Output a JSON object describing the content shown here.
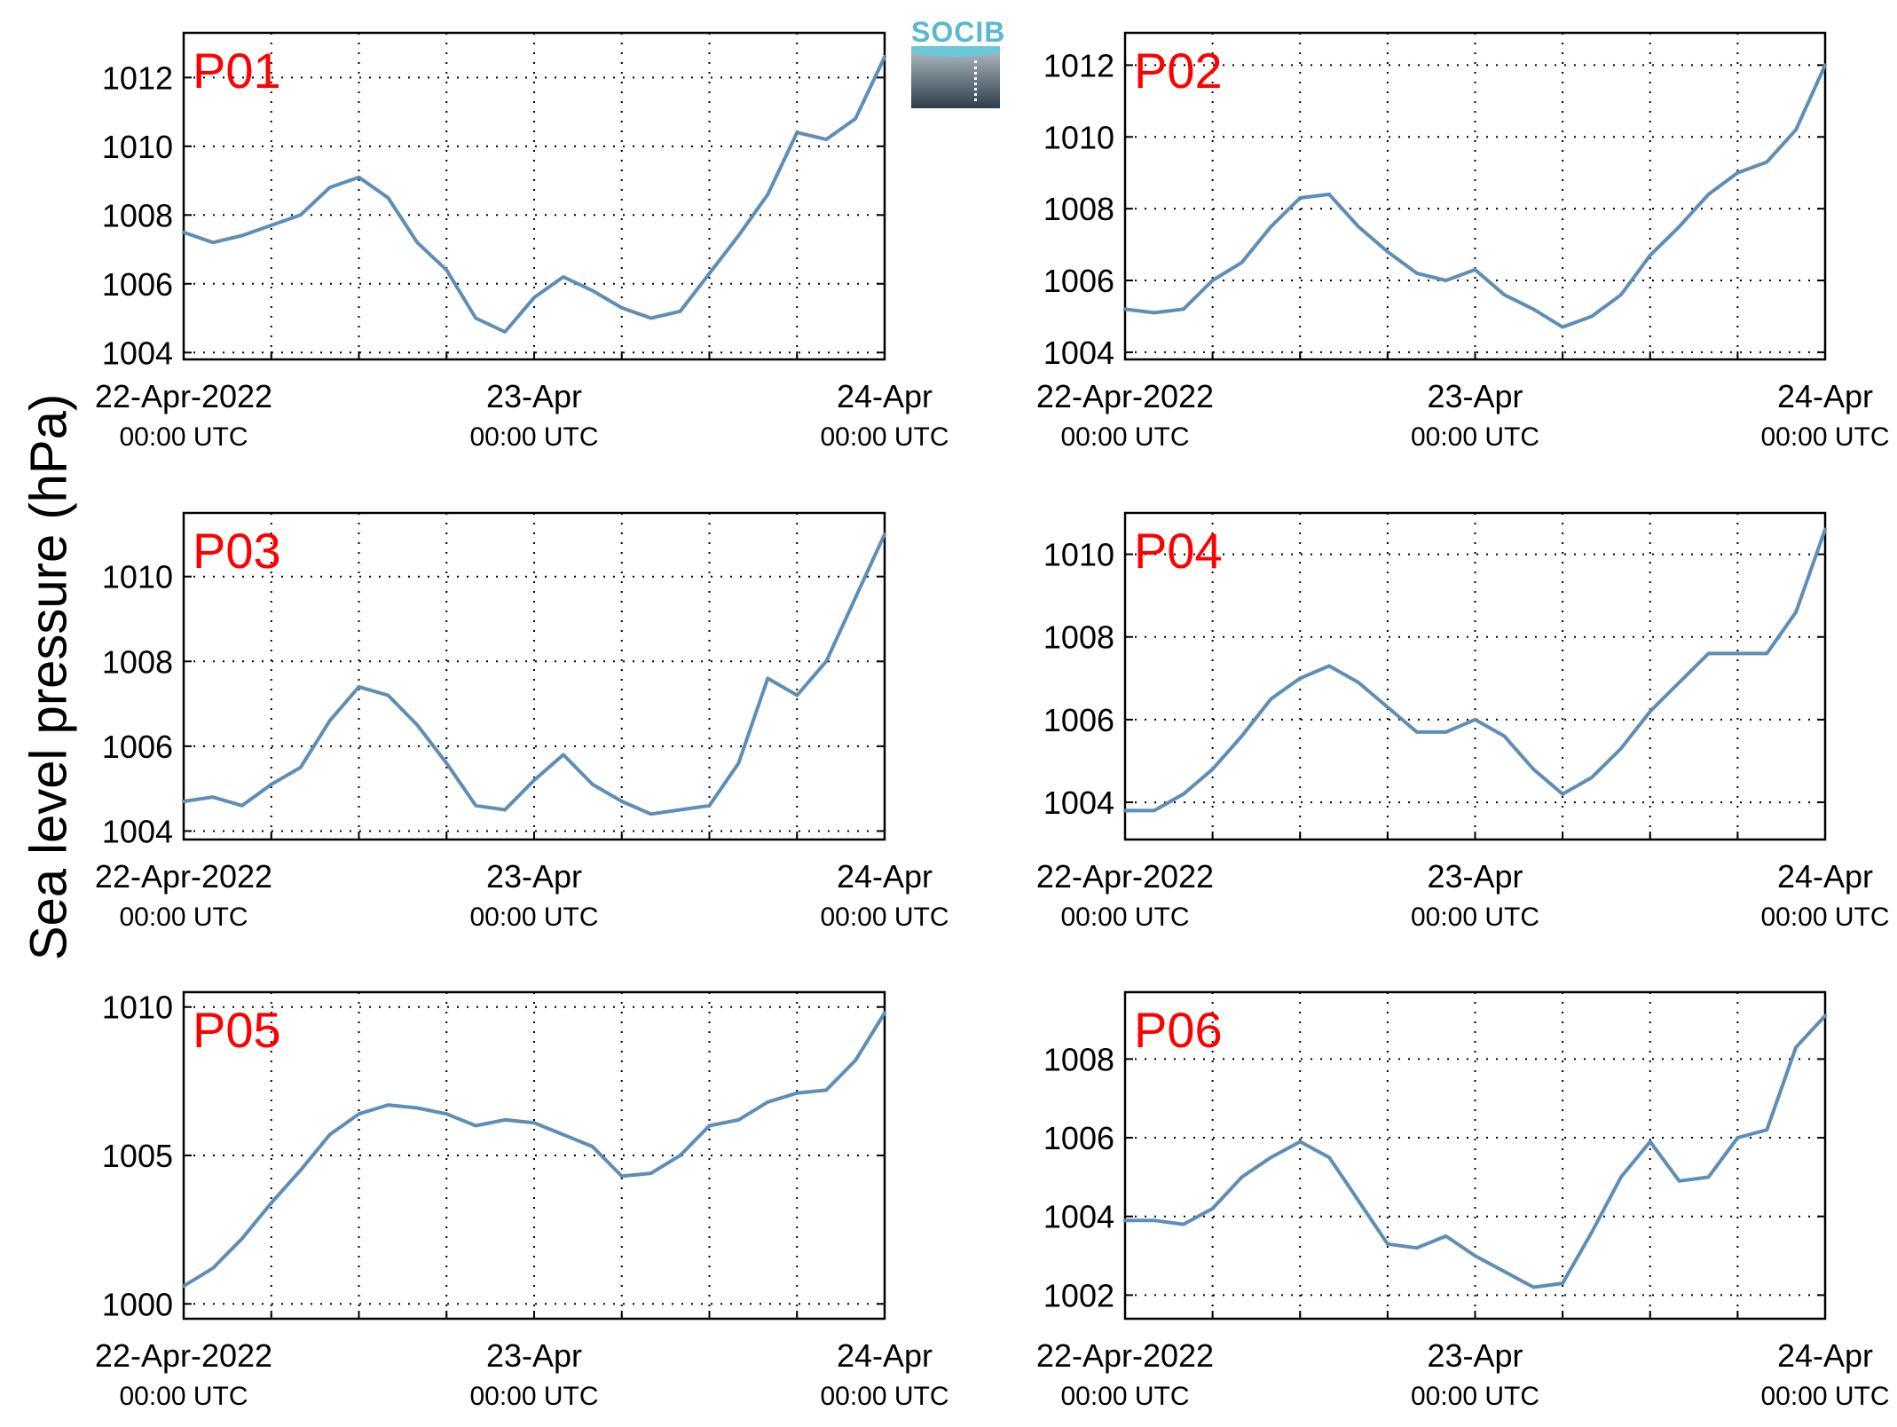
{
  "figure": {
    "ylabel": "Sea level pressure (hPa)",
    "logo_text": "SOCIB",
    "line_color": "#5e8db5",
    "panel_label_color": "#ff0000"
  },
  "chart_data": [
    {
      "type": "line",
      "panel": "P01",
      "x_ticks": [
        {
          "main": "22-Apr-2022",
          "sub": "00:00 UTC"
        },
        {
          "main": "23-Apr",
          "sub": "00:00 UTC"
        },
        {
          "main": "24-Apr",
          "sub": "00:00 UTC"
        }
      ],
      "x_hours": [
        0,
        2,
        4,
        6,
        8,
        10,
        12,
        14,
        16,
        18,
        20,
        22,
        24,
        26,
        28,
        30,
        32,
        34,
        36,
        38,
        40,
        42,
        44,
        46,
        48
      ],
      "ylim": [
        1003.8,
        1013.3
      ],
      "yticks": [
        1004,
        1006,
        1008,
        1010,
        1012
      ],
      "values": [
        1007.5,
        1007.2,
        1007.4,
        1007.7,
        1008.0,
        1008.8,
        1009.1,
        1008.5,
        1007.2,
        1006.4,
        1005.0,
        1004.6,
        1005.6,
        1006.2,
        1005.8,
        1005.3,
        1005.0,
        1005.2,
        1006.3,
        1007.4,
        1008.6,
        1010.4,
        1010.2,
        1010.8,
        1012.6
      ]
    },
    {
      "type": "line",
      "panel": "P02",
      "x_ticks": [
        {
          "main": "22-Apr-2022",
          "sub": "00:00 UTC"
        },
        {
          "main": "23-Apr",
          "sub": "00:00 UTC"
        },
        {
          "main": "24-Apr",
          "sub": "00:00 UTC"
        }
      ],
      "x_hours": [
        0,
        2,
        4,
        6,
        8,
        10,
        12,
        14,
        16,
        18,
        20,
        22,
        24,
        26,
        28,
        30,
        32,
        34,
        36,
        38,
        40,
        42,
        44,
        46,
        48
      ],
      "ylim": [
        1003.8,
        1012.9
      ],
      "yticks": [
        1004,
        1006,
        1008,
        1010,
        1012
      ],
      "values": [
        1005.2,
        1005.1,
        1005.2,
        1006.0,
        1006.5,
        1007.5,
        1008.3,
        1008.4,
        1007.5,
        1006.8,
        1006.2,
        1006.0,
        1006.3,
        1005.6,
        1005.2,
        1004.7,
        1005.0,
        1005.6,
        1006.7,
        1007.5,
        1008.4,
        1009.0,
        1009.3,
        1010.2,
        1012.0
      ]
    },
    {
      "type": "line",
      "panel": "P03",
      "x_ticks": [
        {
          "main": "22-Apr-2022",
          "sub": "00:00 UTC"
        },
        {
          "main": "23-Apr",
          "sub": "00:00 UTC"
        },
        {
          "main": "24-Apr",
          "sub": "00:00 UTC"
        }
      ],
      "x_hours": [
        0,
        2,
        4,
        6,
        8,
        10,
        12,
        14,
        16,
        18,
        20,
        22,
        24,
        26,
        28,
        30,
        32,
        34,
        36,
        38,
        40,
        42,
        44,
        46,
        48
      ],
      "ylim": [
        1003.8,
        1011.5
      ],
      "yticks": [
        1004,
        1006,
        1008,
        1010
      ],
      "values": [
        1004.7,
        1004.8,
        1004.6,
        1005.1,
        1005.5,
        1006.6,
        1007.4,
        1007.2,
        1006.5,
        1005.6,
        1004.6,
        1004.5,
        1005.2,
        1005.8,
        1005.1,
        1004.7,
        1004.4,
        1004.5,
        1004.6,
        1005.6,
        1007.6,
        1007.2,
        1008.0,
        1009.5,
        1011.0
      ]
    },
    {
      "type": "line",
      "panel": "P04",
      "x_ticks": [
        {
          "main": "22-Apr-2022",
          "sub": "00:00 UTC"
        },
        {
          "main": "23-Apr",
          "sub": "00:00 UTC"
        },
        {
          "main": "24-Apr",
          "sub": "00:00 UTC"
        }
      ],
      "x_hours": [
        0,
        2,
        4,
        6,
        8,
        10,
        12,
        14,
        16,
        18,
        20,
        22,
        24,
        26,
        28,
        30,
        32,
        34,
        36,
        38,
        40,
        42,
        44,
        46,
        48
      ],
      "ylim": [
        1003.1,
        1011.0
      ],
      "yticks": [
        1004,
        1006,
        1008,
        1010
      ],
      "values": [
        1003.8,
        1003.8,
        1004.2,
        1004.8,
        1005.6,
        1006.5,
        1007.0,
        1007.3,
        1006.9,
        1006.3,
        1005.7,
        1005.7,
        1006.0,
        1005.6,
        1004.8,
        1004.2,
        1004.6,
        1005.3,
        1006.2,
        1006.9,
        1007.6,
        1007.6,
        1007.6,
        1008.6,
        1010.6
      ]
    },
    {
      "type": "line",
      "panel": "P05",
      "x_ticks": [
        {
          "main": "22-Apr-2022",
          "sub": "00:00 UTC"
        },
        {
          "main": "23-Apr",
          "sub": "00:00 UTC"
        },
        {
          "main": "24-Apr",
          "sub": "00:00 UTC"
        }
      ],
      "x_hours": [
        0,
        2,
        4,
        6,
        8,
        10,
        12,
        14,
        16,
        18,
        20,
        22,
        24,
        26,
        28,
        30,
        32,
        34,
        36,
        38,
        40,
        42,
        44,
        46,
        48
      ],
      "ylim": [
        999.5,
        1010.5
      ],
      "yticks": [
        1000,
        1005,
        1010
      ],
      "values": [
        1000.6,
        1001.2,
        1002.2,
        1003.4,
        1004.5,
        1005.7,
        1006.4,
        1006.7,
        1006.6,
        1006.4,
        1006.0,
        1006.2,
        1006.1,
        1005.7,
        1005.3,
        1004.3,
        1004.4,
        1005.0,
        1006.0,
        1006.2,
        1006.8,
        1007.1,
        1007.2,
        1008.2,
        1009.8
      ]
    },
    {
      "type": "line",
      "panel": "P06",
      "x_ticks": [
        {
          "main": "22-Apr-2022",
          "sub": "00:00 UTC"
        },
        {
          "main": "23-Apr",
          "sub": "00:00 UTC"
        },
        {
          "main": "24-Apr",
          "sub": "00:00 UTC"
        }
      ],
      "x_hours": [
        0,
        2,
        4,
        6,
        8,
        10,
        12,
        14,
        16,
        18,
        20,
        22,
        24,
        26,
        28,
        30,
        32,
        34,
        36,
        38,
        40,
        42,
        44,
        46,
        48
      ],
      "ylim": [
        1001.4,
        1009.7
      ],
      "yticks": [
        1002,
        1004,
        1006,
        1008
      ],
      "values": [
        1003.9,
        1003.9,
        1003.8,
        1004.2,
        1005.0,
        1005.5,
        1005.9,
        1005.5,
        1004.4,
        1003.3,
        1003.2,
        1003.5,
        1003.0,
        1002.6,
        1002.2,
        1002.3,
        1003.6,
        1005.0,
        1005.9,
        1004.9,
        1005.0,
        1006.0,
        1006.2,
        1008.3,
        1009.1
      ]
    }
  ]
}
